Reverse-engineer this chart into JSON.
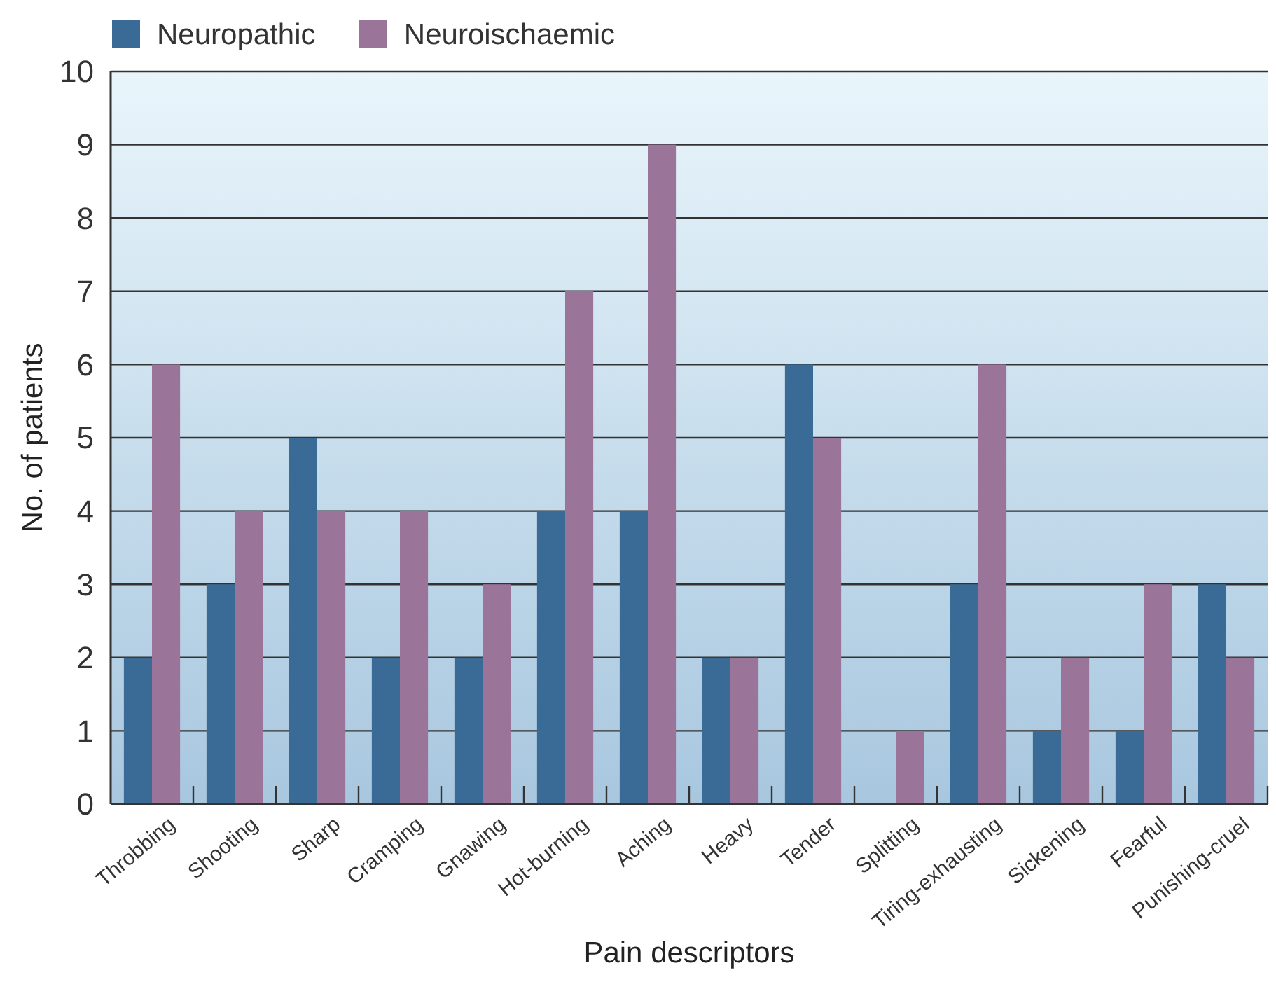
{
  "chart_data": {
    "type": "bar",
    "xlabel": "Pain descriptors",
    "ylabel": "No. of patients",
    "categories": [
      "Throbbing",
      "Shooting",
      "Sharp",
      "Cramping",
      "Gnawing",
      "Hot-burning",
      "Aching",
      "Heavy",
      "Tender",
      "Splitting",
      "Tiring-exhausting",
      "Sickening",
      "Fearful",
      "Punishing-cruel"
    ],
    "series": [
      {
        "name": "Neuropathic",
        "color": "#3a6b96",
        "values": [
          2,
          3,
          5,
          2,
          2,
          4,
          4,
          2,
          6,
          0,
          3,
          1,
          1,
          3
        ]
      },
      {
        "name": "Neuroischaemic",
        "color": "#9a7499",
        "values": [
          6,
          4,
          4,
          4,
          3,
          7,
          9,
          2,
          5,
          1,
          6,
          2,
          3,
          2
        ]
      }
    ],
    "ylim": [
      0,
      10
    ],
    "yticks": [
      0,
      1,
      2,
      3,
      4,
      5,
      6,
      7,
      8,
      9,
      10
    ],
    "grid": "y",
    "legend": "top left"
  }
}
